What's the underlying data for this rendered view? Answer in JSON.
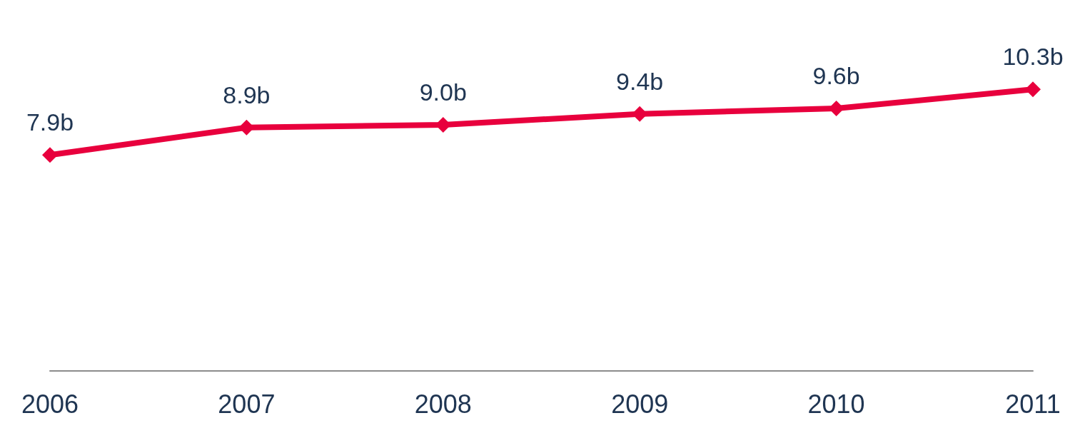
{
  "chart_data": {
    "type": "line",
    "categories": [
      "2006",
      "2007",
      "2008",
      "2009",
      "2010",
      "2011"
    ],
    "series": [
      {
        "color": "#e8003d",
        "values": [
          7.9,
          8.9,
          9.0,
          9.4,
          9.6,
          10.3
        ],
        "value_labels": [
          "7.9b",
          "8.9b",
          "9.0b",
          "9.4b",
          "9.6b",
          "10.3b"
        ]
      }
    ],
    "marker": "diamond",
    "line_style": "solid"
  }
}
